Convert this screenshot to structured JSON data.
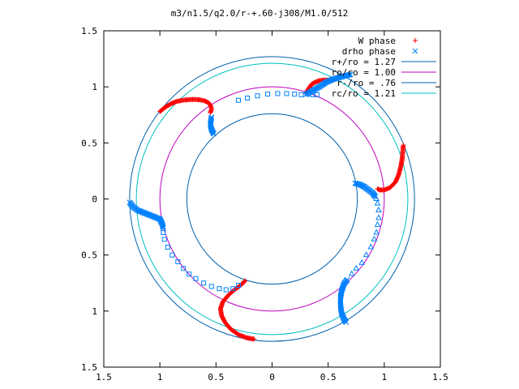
{
  "chart_data": {
    "type": "scatter",
    "title": "m3/n1.5/q2.0/r-+.60-j308/M1.0/512",
    "xlim": [
      -1.5,
      1.5
    ],
    "ylim": [
      -1.5,
      1.5
    ],
    "xticks": [
      -1.5,
      -1,
      -0.5,
      0,
      0.5,
      1,
      1.5
    ],
    "yticks": [
      -1.5,
      -1,
      -0.5,
      0,
      0.5,
      1,
      1.5
    ],
    "xtick_labels": [
      "1.5",
      "1",
      "0.5",
      "0",
      "0.5",
      "1",
      "1.5"
    ],
    "ytick_labels": [
      "1.5",
      "1",
      "0.5",
      "0",
      "0.5",
      "1",
      "1.5"
    ],
    "grid": false,
    "legend_position": "top-right",
    "series": [
      {
        "name": "W phase",
        "marker": "plus",
        "color": "#ff0000",
        "segments": [
          [
            [
              -1.0,
              0.78
            ],
            [
              -0.95,
              0.82
            ],
            [
              -0.9,
              0.85
            ],
            [
              -0.85,
              0.87
            ],
            [
              -0.8,
              0.88
            ],
            [
              -0.75,
              0.885
            ],
            [
              -0.7,
              0.888
            ],
            [
              -0.65,
              0.885
            ],
            [
              -0.6,
              0.875
            ],
            [
              -0.57,
              0.86
            ],
            [
              -0.55,
              0.84
            ],
            [
              -0.54,
              0.8
            ],
            [
              -0.55,
              0.77
            ]
          ],
          [
            [
              0.3,
              0.94
            ],
            [
              0.31,
              0.96
            ],
            [
              0.33,
              0.99
            ],
            [
              0.35,
              1.02
            ],
            [
              0.38,
              1.04
            ],
            [
              0.42,
              1.055
            ],
            [
              0.46,
              1.06
            ],
            [
              0.5,
              1.06
            ],
            [
              0.54,
              1.065
            ],
            [
              0.58,
              1.075
            ]
          ],
          [
            [
              1.17,
              0.48
            ],
            [
              1.165,
              0.42
            ],
            [
              1.16,
              0.36
            ],
            [
              1.15,
              0.3
            ],
            [
              1.13,
              0.22
            ],
            [
              1.1,
              0.15
            ],
            [
              1.05,
              0.1
            ],
            [
              1.0,
              0.08
            ],
            [
              0.96,
              0.08
            ],
            [
              0.94,
              0.09
            ]
          ],
          [
            [
              -0.24,
              -0.73
            ],
            [
              -0.28,
              -0.77
            ],
            [
              -0.32,
              -0.8
            ],
            [
              -0.36,
              -0.83
            ],
            [
              -0.4,
              -0.87
            ],
            [
              -0.44,
              -0.92
            ],
            [
              -0.46,
              -0.98
            ],
            [
              -0.45,
              -1.04
            ],
            [
              -0.42,
              -1.1
            ],
            [
              -0.37,
              -1.16
            ],
            [
              -0.3,
              -1.21
            ],
            [
              -0.22,
              -1.24
            ],
            [
              -0.16,
              -1.25
            ]
          ]
        ]
      },
      {
        "name": "drho phase",
        "marker": "cross",
        "color": "#0080ff",
        "segments": [
          [
            [
              -0.54,
              0.73
            ],
            [
              -0.545,
              0.7
            ],
            [
              -0.55,
              0.66
            ],
            [
              -0.54,
              0.62
            ],
            [
              -0.52,
              0.58
            ]
          ],
          [
            [
              -1.27,
              -0.03
            ],
            [
              -1.24,
              -0.07
            ],
            [
              -1.2,
              -0.1
            ],
            [
              -1.15,
              -0.12
            ],
            [
              -1.1,
              -0.14
            ],
            [
              -1.05,
              -0.16
            ],
            [
              -1.0,
              -0.18
            ],
            [
              -0.98,
              -0.22
            ],
            [
              -0.97,
              -0.26
            ]
          ],
          [
            [
              0.3,
              0.93
            ],
            [
              0.35,
              0.96
            ],
            [
              0.42,
              1.0
            ],
            [
              0.48,
              1.04
            ],
            [
              0.55,
              1.07
            ],
            [
              0.62,
              1.09
            ],
            [
              0.66,
              1.1
            ],
            [
              0.7,
              1.11
            ]
          ],
          [
            [
              0.74,
              0.14
            ],
            [
              0.78,
              0.13
            ],
            [
              0.82,
              0.11
            ],
            [
              0.86,
              0.08
            ],
            [
              0.9,
              0.05
            ],
            [
              0.92,
              0.02
            ]
          ],
          [
            [
              0.67,
              -0.72
            ],
            [
              0.64,
              -0.76
            ],
            [
              0.62,
              -0.82
            ],
            [
              0.61,
              -0.88
            ],
            [
              0.61,
              -0.95
            ],
            [
              0.62,
              -1.02
            ],
            [
              0.64,
              -1.07
            ],
            [
              0.66,
              -1.1
            ]
          ]
        ]
      },
      {
        "name": "",
        "marker": "square",
        "color": "#0080ff",
        "points": [
          [
            -0.3,
            0.88
          ],
          [
            -0.22,
            0.9
          ],
          [
            -0.13,
            0.92
          ],
          [
            -0.04,
            0.935
          ],
          [
            0.05,
            0.94
          ],
          [
            0.13,
            0.94
          ],
          [
            0.2,
            0.935
          ],
          [
            0.26,
            0.93
          ],
          [
            0.36,
            0.93
          ],
          [
            0.4,
            0.93
          ],
          [
            -0.97,
            -0.3
          ],
          [
            -0.96,
            -0.36
          ],
          [
            -0.93,
            -0.43
          ],
          [
            -0.89,
            -0.5
          ],
          [
            -0.84,
            -0.56
          ],
          [
            -0.79,
            -0.62
          ],
          [
            -0.74,
            -0.67
          ],
          [
            -0.68,
            -0.71
          ],
          [
            -0.61,
            -0.75
          ],
          [
            -0.54,
            -0.78
          ],
          [
            -0.47,
            -0.8
          ],
          [
            -0.41,
            -0.81
          ],
          [
            -0.35,
            -0.8
          ],
          [
            -0.3,
            -0.77
          ]
        ]
      },
      {
        "name": "",
        "marker": "triangle",
        "color": "#0080ff",
        "points": [
          [
            0.93,
            0.0
          ],
          [
            0.94,
            -0.04
          ],
          [
            0.95,
            -0.1
          ],
          [
            0.95,
            -0.17
          ],
          [
            0.94,
            -0.23
          ],
          [
            0.93,
            -0.3
          ],
          [
            0.91,
            -0.36
          ],
          [
            0.88,
            -0.43
          ],
          [
            0.84,
            -0.5
          ],
          [
            0.8,
            -0.57
          ],
          [
            0.75,
            -0.62
          ],
          [
            0.71,
            -0.67
          ]
        ]
      },
      {
        "name": "r+/ro = 1.27",
        "type": "circle",
        "radius": 1.27,
        "color": "#0060ad"
      },
      {
        "name": "ro/ro = 1.00",
        "type": "circle",
        "radius": 1.0,
        "color": "#c000c0"
      },
      {
        "name": "r-/ro = .76",
        "type": "circle",
        "radius": 0.76,
        "color": "#0060ad"
      },
      {
        "name": "rc/ro = 1.21",
        "type": "circle",
        "radius": 1.21,
        "color": "#00c0c0"
      }
    ]
  }
}
